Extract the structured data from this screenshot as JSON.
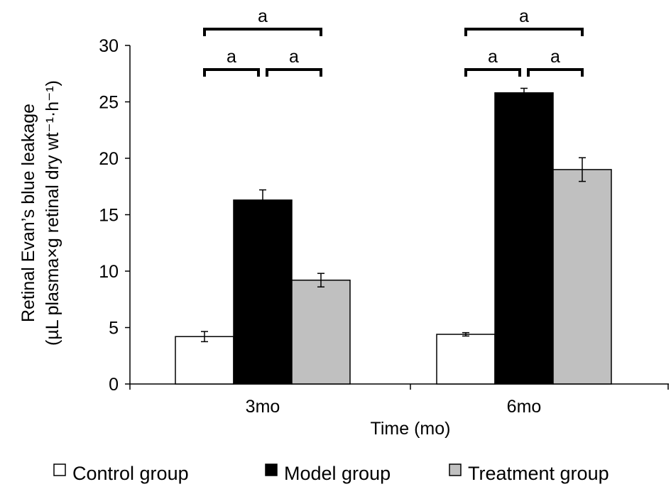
{
  "chart_data": {
    "type": "bar",
    "title": "",
    "xlabel": "Time (mo)",
    "ylabel_line1": "Retinal Evan’s blue leakage",
    "ylabel_line2": "(µL plasma×g retinal dry wt⁻¹·h⁻¹)",
    "ylim": [
      0,
      30
    ],
    "yticks": [
      0,
      5,
      10,
      15,
      20,
      25,
      30
    ],
    "categories": [
      "3mo",
      "6mo"
    ],
    "grid": false,
    "legend_position": "bottom",
    "series": [
      {
        "name": "Control group",
        "color": "#ffffff",
        "values": [
          4.2,
          4.4
        ],
        "errors": [
          0.45,
          0.15
        ]
      },
      {
        "name": "Model group",
        "color": "#000000",
        "values": [
          16.3,
          25.8
        ],
        "errors": [
          0.9,
          0.4
        ]
      },
      {
        "name": "Treatment group",
        "color": "#c0c0c0",
        "values": [
          9.2,
          19.0
        ],
        "errors": [
          0.6,
          1.05
        ]
      }
    ],
    "significance": [
      {
        "category": 0,
        "from": 0,
        "to": 2,
        "label": "a",
        "level": 2
      },
      {
        "category": 0,
        "from": 0,
        "to": 1,
        "label": "a",
        "level": 1
      },
      {
        "category": 0,
        "from": 1,
        "to": 2,
        "label": "a",
        "level": 1
      },
      {
        "category": 1,
        "from": 0,
        "to": 2,
        "label": "a",
        "level": 2
      },
      {
        "category": 1,
        "from": 0,
        "to": 1,
        "label": "a",
        "level": 1
      },
      {
        "category": 1,
        "from": 1,
        "to": 2,
        "label": "a",
        "level": 1
      }
    ]
  }
}
